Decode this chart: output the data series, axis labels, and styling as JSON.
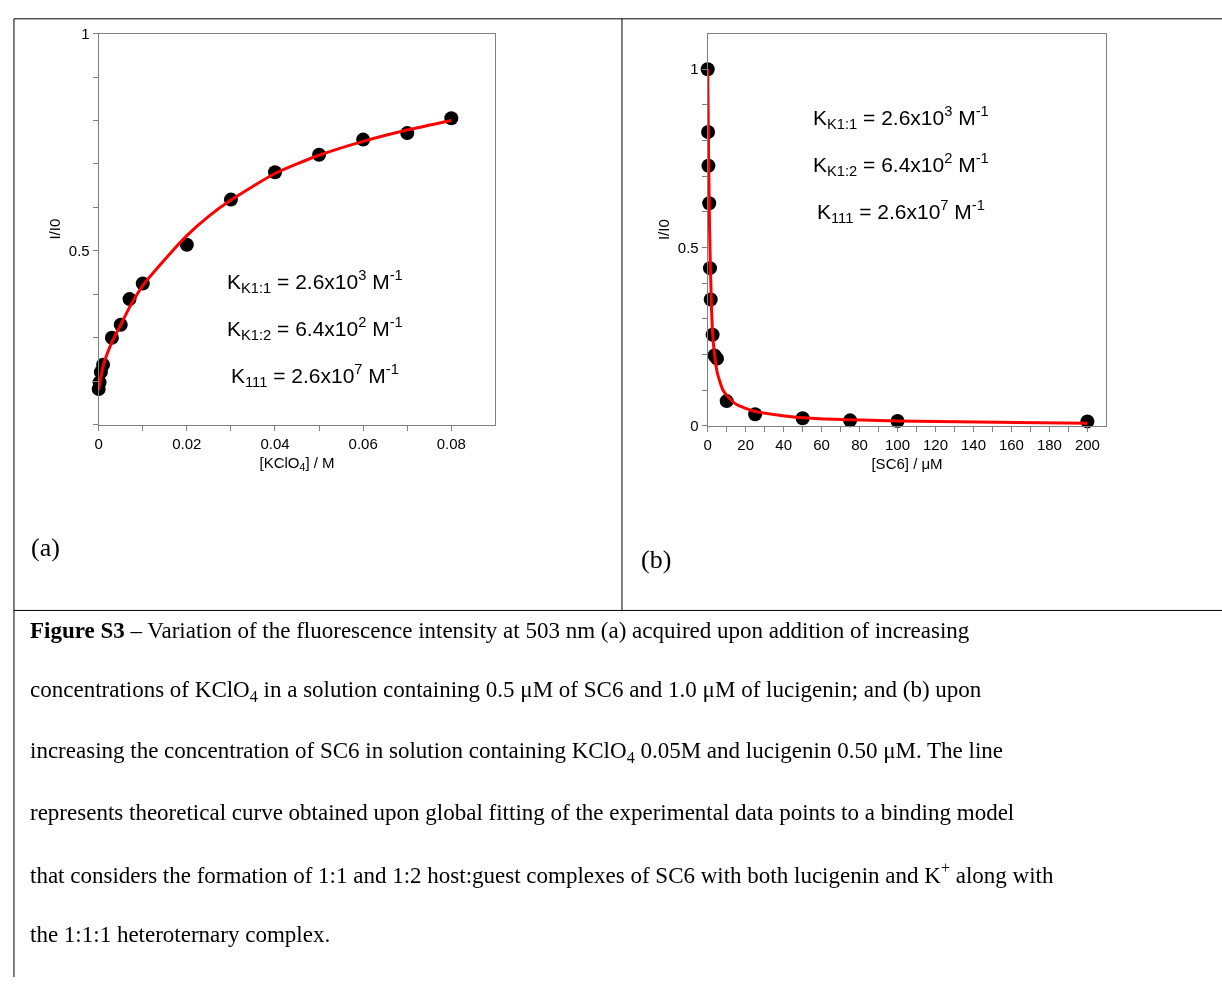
{
  "chart_data": [
    {
      "type": "scatter",
      "xlabel": "[KClO$_{4}$] / M",
      "ylabel": "I/I0",
      "xlim": [
        0,
        0.09
      ],
      "ylim": [
        0.1,
        1
      ],
      "xticks": [
        0,
        {
          "value": 0.01,
          "label": null
        },
        0.02,
        {
          "value": 0.03,
          "label": null
        },
        0.04,
        {
          "value": 0.05,
          "label": null
        },
        0.06,
        {
          "value": 0.07,
          "label": null
        },
        0.08
      ],
      "yticks": [
        {
          "value": 0.1,
          "label": null
        },
        {
          "value": 0.2,
          "label": null
        },
        {
          "value": 0.3,
          "label": null
        },
        {
          "value": 0.4,
          "label": null
        },
        0.5,
        {
          "value": 0.6,
          "label": null
        },
        {
          "value": 0.7,
          "label": null
        },
        {
          "value": 0.8,
          "label": null
        },
        {
          "value": 0.9,
          "label": null
        },
        1
      ],
      "series": [
        {
          "type": "scatter",
          "marker": "circle",
          "color": "#000000",
          "x": [
            0,
            0.0002,
            0.0005,
            0.001,
            0.003,
            0.005,
            0.007,
            0.01,
            0.02,
            0.03,
            0.04,
            0.05,
            0.06,
            0.07,
            0.08
          ],
          "values": [
            0.182,
            0.197,
            0.221,
            0.238,
            0.3,
            0.33,
            0.389,
            0.425,
            0.514,
            0.618,
            0.681,
            0.721,
            0.756,
            0.771,
            0.805
          ]
        },
        {
          "type": "line",
          "marker": "none",
          "color": "#ff0000",
          "x": [
            0,
            0.001,
            0.003,
            0.005,
            0.007,
            0.01,
            0.015,
            0.02,
            0.025,
            0.03,
            0.04,
            0.05,
            0.06,
            0.07,
            0.08
          ],
          "values": [
            0.18,
            0.235,
            0.29,
            0.33,
            0.37,
            0.42,
            0.48,
            0.535,
            0.58,
            0.617,
            0.678,
            0.72,
            0.752,
            0.778,
            0.8
          ]
        }
      ],
      "annotations": [
        "K$_{K1:1}$ = 2.6x10$^{3}$ M$^{-1}$",
        "K$_{K1:2}$ = 6.4x10$^{2}$ M$^{-1}$",
        "K$_{111}$ = 2.6x10$^{7}$ M$^{-1}$",
        "(a)"
      ]
    },
    {
      "type": "scatter",
      "xlabel": "[SC6] / μM",
      "ylabel": "I/I0",
      "xlim": [
        0,
        210
      ],
      "ylim": [
        0,
        1.1
      ],
      "xticks": [
        0,
        {
          "value": 10,
          "label": null
        },
        20,
        {
          "value": 30,
          "label": null
        },
        40,
        {
          "value": 50,
          "label": null
        },
        60,
        {
          "value": 70,
          "label": null
        },
        80,
        {
          "value": 90,
          "label": null
        },
        100,
        {
          "value": 110,
          "label": null
        },
        120,
        {
          "value": 130,
          "label": null
        },
        140,
        {
          "value": 150,
          "label": null
        },
        160,
        {
          "value": 170,
          "label": null
        },
        180,
        {
          "value": 190,
          "label": null
        },
        200
      ],
      "yticks": [
        0,
        {
          "value": 0.1,
          "label": null
        },
        {
          "value": 0.2,
          "label": null
        },
        {
          "value": 0.3,
          "label": null
        },
        {
          "value": 0.4,
          "label": null
        },
        0.5,
        {
          "value": 0.6,
          "label": null
        },
        {
          "value": 0.7,
          "label": null
        },
        {
          "value": 0.8,
          "label": null
        },
        {
          "value": 0.9,
          "label": null
        },
        1
      ],
      "series": [
        {
          "type": "scatter",
          "marker": "circle",
          "color": "#000000",
          "x": [
            0,
            0.2,
            0.4,
            0.8,
            1.2,
            1.6,
            2.6,
            3.6,
            4.9,
            10,
            25,
            50,
            75,
            100,
            200
          ],
          "values": [
            1.0,
            0.824,
            0.729,
            0.624,
            0.442,
            0.354,
            0.255,
            0.197,
            0.188,
            0.069,
            0.032,
            0.021,
            0.015,
            0.013,
            0.012
          ]
        },
        {
          "type": "line",
          "marker": "none",
          "color": "#ff0000",
          "x": [
            0,
            0.5,
            1,
            2,
            3,
            5,
            8,
            10,
            15,
            25,
            50,
            100,
            200
          ],
          "values": [
            1.0,
            0.75,
            0.55,
            0.33,
            0.23,
            0.15,
            0.1,
            0.085,
            0.06,
            0.04,
            0.022,
            0.013,
            0.007
          ]
        }
      ],
      "annotations": [
        "K$_{K1:1}$ = 2.6x10$^{3}$ M$^{-1}$",
        "K$_{K1:2}$ = 6.4x10$^{2}$ M$^{-1}$",
        "K$_{111}$ = 2.6x10$^{7}$ M$^{-1}$",
        "(b)"
      ]
    },
    {
      "type": "other",
      "title": "Figure S3",
      "annotations": [
        "– Variation of the fluorescence intensity at 503 nm (a) acquired upon addition of increasing concentrations of KClO$_{4}$ in a solution containing 0.5 μM of SC6 and 1.0 μM of lucigenin; and (b) upon increasing the concentration of SC6 in solution containing KClO$_{4}$ 0.05M and lucigenin 0.50 μM. The line represents theoretical curve obtained upon global fitting of the experimental data points to a binding model that considers the formation of 1:1 and 1:2 host:guest complexes of SC6 with both lucigenin and K$^{+}$ along with the 1:1:1 heteroternary complex."
      ]
    }
  ]
}
